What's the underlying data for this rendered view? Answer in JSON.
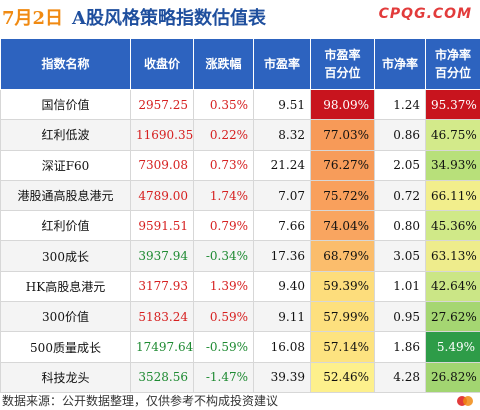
{
  "header": {
    "date": "7月2日",
    "title": "A股风格策略指数估值表",
    "brand": "CPQG.COM"
  },
  "columns": [
    "指数名称",
    "收盘价",
    "涨跌幅",
    "市盈率",
    "市盈率\n百分位",
    "市净率",
    "市净率\n百分位"
  ],
  "rows": [
    {
      "name": "国信价值",
      "close": "2957.25",
      "close_dir": "up",
      "change": "0.35%",
      "change_dir": "up",
      "pe": "9.51",
      "pe_pct": "98.09%",
      "pe_color": "#c8141e",
      "pe_text": "#ffffff",
      "pb": "1.24",
      "pb_pct": "95.37%",
      "pb_color": "#c8141e",
      "pb_text": "#ffffff"
    },
    {
      "name": "红利低波",
      "close": "11690.35",
      "close_dir": "up",
      "change": "0.22%",
      "change_dir": "up",
      "pe": "8.32",
      "pe_pct": "77.03%",
      "pe_color": "#f79a58",
      "pe_text": "#111111",
      "pb": "0.86",
      "pb_pct": "46.75%",
      "pb_color": "#d3ea8a",
      "pb_text": "#111111"
    },
    {
      "name": "深证F60",
      "close": "7309.08",
      "close_dir": "up",
      "change": "0.73%",
      "change_dir": "up",
      "pe": "21.24",
      "pe_pct": "76.27%",
      "pe_color": "#f79c5a",
      "pe_text": "#111111",
      "pb": "2.05",
      "pb_pct": "34.93%",
      "pb_color": "#b8e07a",
      "pb_text": "#111111"
    },
    {
      "name": "港股通高股息港元",
      "close": "4789.00",
      "close_dir": "up",
      "change": "1.74%",
      "change_dir": "up",
      "pe": "7.07",
      "pe_pct": "75.72%",
      "pe_color": "#f9a05c",
      "pe_text": "#111111",
      "pb": "0.72",
      "pb_pct": "66.11%",
      "pb_color": "#f2ee8c",
      "pb_text": "#111111"
    },
    {
      "name": "红利价值",
      "close": "9591.51",
      "close_dir": "up",
      "change": "0.79%",
      "change_dir": "up",
      "pe": "7.66",
      "pe_pct": "74.04%",
      "pe_color": "#f9a560",
      "pe_text": "#111111",
      "pb": "0.80",
      "pb_pct": "45.36%",
      "pb_color": "#d0e988",
      "pb_text": "#111111"
    },
    {
      "name": "300成长",
      "close": "3937.94",
      "close_dir": "down",
      "change": "-0.34%",
      "change_dir": "down",
      "pe": "17.36",
      "pe_pct": "68.79%",
      "pe_color": "#fbbd6c",
      "pe_text": "#111111",
      "pb": "3.05",
      "pb_pct": "63.13%",
      "pb_color": "#eeec8c",
      "pb_text": "#111111"
    },
    {
      "name": "HK高股息港元",
      "close": "3177.93",
      "close_dir": "up",
      "change": "1.39%",
      "change_dir": "up",
      "pe": "9.40",
      "pe_pct": "59.39%",
      "pe_color": "#fddd7c",
      "pe_text": "#111111",
      "pb": "1.01",
      "pb_pct": "42.64%",
      "pb_color": "#cbe686",
      "pb_text": "#111111"
    },
    {
      "name": "300价值",
      "close": "5183.24",
      "close_dir": "up",
      "change": "0.59%",
      "change_dir": "up",
      "pe": "9.11",
      "pe_pct": "57.99%",
      "pe_color": "#fde07e",
      "pe_text": "#111111",
      "pb": "0.95",
      "pb_pct": "27.62%",
      "pb_color": "#a5d672",
      "pb_text": "#111111"
    },
    {
      "name": "500质量成长",
      "close": "17497.64",
      "close_dir": "down",
      "change": "-0.59%",
      "change_dir": "down",
      "pe": "16.08",
      "pe_pct": "57.14%",
      "pe_color": "#fde380",
      "pe_text": "#111111",
      "pb": "1.86",
      "pb_pct": "5.49%",
      "pb_color": "#2e9c48",
      "pb_text": "#ffffff"
    },
    {
      "name": "科技龙头",
      "close": "3528.56",
      "close_dir": "down",
      "change": "-1.47%",
      "change_dir": "down",
      "pe": "39.39",
      "pe_pct": "52.46%",
      "pe_color": "#fdf08c",
      "pe_text": "#111111",
      "pb": "4.28",
      "pb_pct": "26.82%",
      "pb_color": "#a2d571",
      "pb_text": "#111111"
    }
  ],
  "colors": {
    "up": "#d62020",
    "down": "#1e8a32",
    "header_bg": "#2d63bf"
  },
  "footer": {
    "source": "数据来源：公开数据整理，仅供参考不构成投资建议"
  }
}
